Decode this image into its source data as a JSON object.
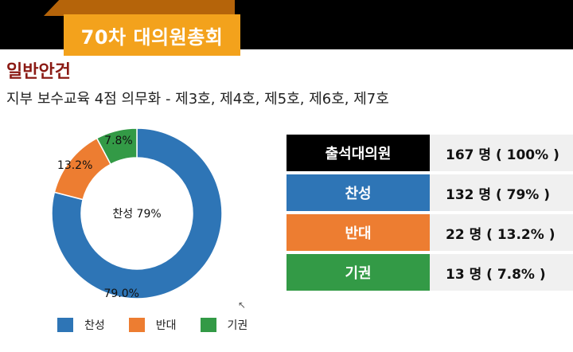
{
  "header": {
    "banner_title": "70차 대의원총회"
  },
  "section": {
    "title": "일반안건",
    "agenda": "지부 보수교육 4점 의무화 - 제3호, 제4호, 제5호, 제6호, 제7호"
  },
  "colors": {
    "agree": "#2e75b6",
    "oppose": "#ed7d31",
    "abstain": "#339a46",
    "attendance": "#000000",
    "banner": "#f3a21c",
    "title": "#8b1a14"
  },
  "vote_table": {
    "rows": [
      {
        "label": "출석대의원",
        "value": "167 명 ( 100% )",
        "color": "#000000"
      },
      {
        "label": "찬성",
        "value": "132 명 ( 79% )",
        "color": "#2e75b6"
      },
      {
        "label": "반대",
        "value": "22 명 ( 13.2% )",
        "color": "#ed7d31"
      },
      {
        "label": "기권",
        "value": "13 명 ( 7.8% )",
        "color": "#339a46"
      }
    ]
  },
  "chart_data": {
    "type": "pie",
    "donut": true,
    "center_label": "찬성 79%",
    "categories": [
      "찬성",
      "반대",
      "기권"
    ],
    "values": [
      79.0,
      13.2,
      7.8
    ],
    "data_labels": [
      "79.0%",
      "13.2%",
      "7.8%"
    ],
    "colors": [
      "#2e75b6",
      "#ed7d31",
      "#339a46"
    ],
    "start": "top",
    "direction": "clockwise",
    "legend": {
      "position": "bottom",
      "entries": [
        "찬성",
        "반대",
        "기권"
      ]
    }
  }
}
